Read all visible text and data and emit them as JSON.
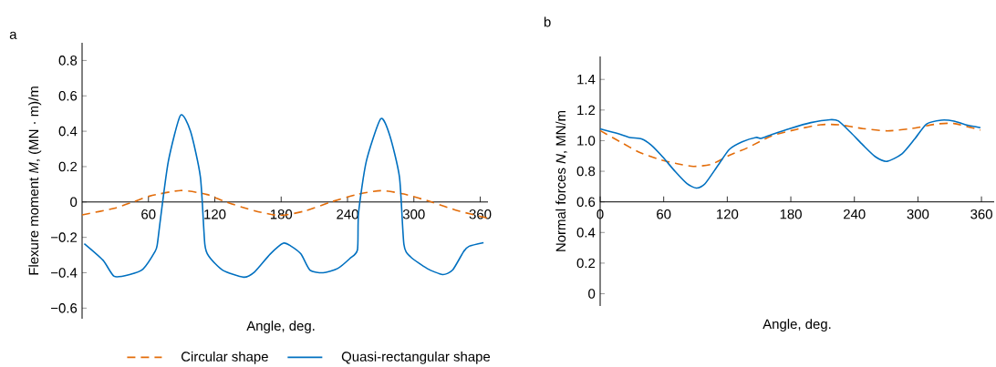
{
  "chart_data": [
    {
      "type": "line",
      "title": "a",
      "xlabel": "Angle, deg.",
      "ylabel": "Flexure moment *M*, (MN · m)/m",
      "xlim": [
        0,
        367
      ],
      "ylim": [
        -0.66,
        0.9
      ],
      "xticks": [
        60,
        120,
        180,
        240,
        300,
        360
      ],
      "yticks": [
        {
          "value": -0.6,
          "label": "−0.6"
        },
        {
          "value": -0.4,
          "label": "−0.4"
        },
        {
          "value": -0.2,
          "label": "−0.2"
        },
        0,
        0.2,
        0.4,
        0.6,
        0.8
      ],
      "legend": "bottom",
      "series": [
        {
          "name": "Circular shape",
          "color": "#e36c09",
          "line_style": "dashed",
          "x": [
            0,
            29,
            46,
            61,
            89,
            113,
            130,
            156,
            179,
            202,
            225,
            248,
            270,
            291,
            316,
            340,
            366
          ],
          "values": [
            -0.073,
            -0.036,
            0,
            0.033,
            0.065,
            0.042,
            0,
            -0.05,
            -0.076,
            -0.05,
            0,
            0.042,
            0.064,
            0.045,
            0,
            -0.05,
            -0.09
          ]
        },
        {
          "name": "Quasi-rectangular shape",
          "color": "#0070c0",
          "line_style": "solid",
          "x": [
            2,
            19,
            29,
            43,
            55,
            66,
            68,
            71,
            78,
            89,
            98,
            107,
            111,
            115,
            127,
            146,
            156,
            170,
            182,
            189,
            198,
            206,
            218,
            231,
            242,
            249,
            250,
            257,
            270,
            278,
            287,
            291,
            297,
            312,
            326,
            335,
            345,
            350,
            363
          ],
          "values": [
            -0.236,
            -0.33,
            -0.42,
            -0.41,
            -0.38,
            -0.28,
            -0.24,
            -0.09,
            0.23,
            0.49,
            0.4,
            0.14,
            -0.24,
            -0.31,
            -0.385,
            -0.425,
            -0.395,
            -0.295,
            -0.233,
            -0.25,
            -0.295,
            -0.385,
            -0.4,
            -0.376,
            -0.32,
            -0.27,
            -0.06,
            0.23,
            0.47,
            0.38,
            0.14,
            -0.24,
            -0.31,
            -0.376,
            -0.41,
            -0.385,
            -0.28,
            -0.25,
            -0.23
          ]
        }
      ]
    },
    {
      "type": "line",
      "title": "b",
      "xlabel": "Angle, deg.",
      "ylabel": "Normal forces *N*, MN/m",
      "xlim": [
        0,
        372
      ],
      "ylim": [
        -0.08,
        1.55
      ],
      "xticks": [
        0,
        60,
        120,
        180,
        240,
        300,
        360
      ],
      "yticks": [
        0,
        0.2,
        0.4,
        0.6,
        0.8,
        {
          "value": 1,
          "label": "1.0"
        },
        1.2,
        1.4
      ],
      "series": [
        {
          "color": "#e36c09",
          "line_style": "dashed",
          "x": [
            0,
            19,
            37,
            57,
            71,
            88,
            105,
            122,
            139,
            162,
            185,
            208,
            225,
            248,
            271,
            294,
            317,
            334,
            359
          ],
          "values": [
            1.066,
            0.992,
            0.924,
            0.875,
            0.852,
            0.832,
            0.846,
            0.904,
            0.953,
            1.031,
            1.073,
            1.104,
            1.104,
            1.079,
            1.064,
            1.079,
            1.108,
            1.112,
            1.069
          ]
        },
        {
          "color": "#0070c0",
          "line_style": "solid",
          "x": [
            0,
            17,
            28,
            39,
            48,
            59,
            71,
            82,
            91,
            99,
            111,
            122,
            134,
            147,
            152,
            162,
            179,
            199,
            217,
            225,
            237,
            248,
            260,
            271,
            285,
            297,
            308,
            322,
            334,
            345,
            359
          ],
          "values": [
            1.077,
            1.046,
            1.021,
            1.011,
            0.972,
            0.894,
            0.797,
            0.719,
            0.69,
            0.719,
            0.836,
            0.943,
            0.992,
            1.021,
            1.015,
            1.04,
            1.079,
            1.118,
            1.137,
            1.128,
            1.05,
            0.972,
            0.894,
            0.865,
            0.914,
            1.011,
            1.108,
            1.134,
            1.128,
            1.104,
            1.085
          ]
        }
      ]
    }
  ]
}
